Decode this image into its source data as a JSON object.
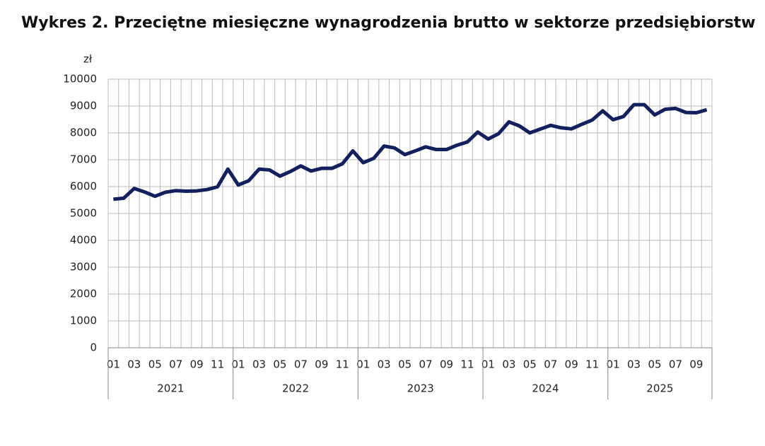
{
  "chart_data": {
    "type": "line",
    "title": "Wykres 2. Przeciętne miesięczne wynagrodzenia brutto w sektorze przedsiębiorstw",
    "y_unit": "zł",
    "categories": [
      "01",
      null,
      "03",
      null,
      "05",
      null,
      "07",
      null,
      "09",
      null,
      "11",
      null,
      "01",
      null,
      "03",
      null,
      "05",
      null,
      "07",
      null,
      "09",
      null,
      "11",
      null,
      "01",
      null,
      "03",
      null,
      "05",
      null,
      "07",
      null,
      "09",
      null,
      "11",
      null,
      "01",
      null,
      "03",
      null,
      "05",
      null,
      "07",
      null,
      "09",
      null,
      "11",
      null,
      "01",
      null,
      "03",
      null,
      "05",
      null,
      "07",
      null,
      "09",
      null
    ],
    "x_groups": [
      "2021",
      "2022",
      "2023",
      "2024",
      "2025"
    ],
    "series": [
      {
        "color": "#12205e",
        "values": [
          5530,
          5570,
          5930,
          5800,
          5640,
          5790,
          5850,
          5830,
          5840,
          5890,
          5990,
          6650,
          6060,
          6220,
          6650,
          6620,
          6390,
          6560,
          6770,
          6580,
          6680,
          6680,
          6850,
          7330,
          6890,
          7050,
          7510,
          7440,
          7190,
          7330,
          7480,
          7380,
          7380,
          7540,
          7660,
          8030,
          7770,
          7970,
          8410,
          8260,
          8000,
          8140,
          8280,
          8190,
          8150,
          8320,
          8480,
          8820,
          8490,
          8610,
          9050,
          9050,
          8670,
          8880,
          8910,
          8760,
          8750,
          8860
        ]
      }
    ],
    "ylim": [
      0,
      10000
    ],
    "yticks": [
      0,
      1000,
      2000,
      3000,
      4000,
      5000,
      6000,
      7000,
      8000,
      9000,
      10000
    ],
    "grid": true
  }
}
